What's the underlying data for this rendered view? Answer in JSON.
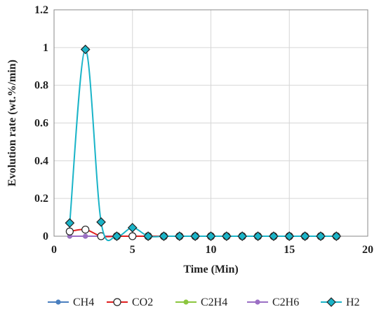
{
  "chart_data": {
    "type": "line",
    "title": "",
    "xlabel": "Time (Min)",
    "ylabel": "Evolution rate (wt.%/min)",
    "xlim": [
      0,
      20
    ],
    "ylim": [
      0,
      1.2
    ],
    "x_ticks": [
      0,
      5,
      10,
      15,
      20
    ],
    "y_ticks": [
      0,
      0.2,
      0.4,
      0.6,
      0.8,
      1,
      1.2
    ],
    "x_tick_labels": [
      "0",
      "5",
      "10",
      "15",
      "20"
    ],
    "y_tick_labels": [
      "0",
      "0.2",
      "0.4",
      "0.6",
      "0.8",
      "1",
      "1.2"
    ],
    "grid": true,
    "legend_position": "bottom",
    "x": [
      1,
      2,
      3,
      4,
      5,
      6,
      7,
      8,
      9,
      10,
      11,
      12,
      13,
      14,
      15,
      16,
      17,
      18
    ],
    "series": [
      {
        "name": "CH4",
        "color": "#4a7fbf",
        "marker": "circle",
        "marker_fill": "#4a7fbf",
        "values": [
          0,
          0,
          0,
          0,
          0,
          0,
          0,
          0,
          0,
          0,
          0,
          0,
          0,
          0,
          0,
          0,
          0,
          0
        ]
      },
      {
        "name": "CO2",
        "color": "#e02020",
        "marker": "circle-open",
        "marker_fill": "#ffffff",
        "values": [
          0.025,
          0.035,
          0,
          0,
          0,
          0,
          0,
          0,
          0,
          0,
          0,
          0,
          0,
          0,
          0,
          0,
          0,
          0
        ]
      },
      {
        "name": "C2H4",
        "color": "#8cc63f",
        "marker": "circle",
        "marker_fill": "#8cc63f",
        "values": [
          0,
          0,
          0,
          0,
          0,
          0,
          0,
          0,
          0,
          0,
          0,
          0,
          0,
          0,
          0,
          0,
          0,
          0
        ]
      },
      {
        "name": "C2H6",
        "color": "#9b6fc4",
        "marker": "circle",
        "marker_fill": "#9b6fc4",
        "values": [
          0,
          0,
          0,
          0,
          0,
          0,
          0,
          0,
          0,
          0,
          0,
          0,
          0,
          0,
          0,
          0,
          0,
          0
        ]
      },
      {
        "name": "H2",
        "color": "#1ab4c8",
        "marker": "diamond",
        "marker_fill": "#1ab4c8",
        "values": [
          0.07,
          0.99,
          0.075,
          0,
          0.045,
          0,
          0,
          0,
          0,
          0,
          0,
          0,
          0,
          0,
          0,
          0,
          0,
          0
        ]
      }
    ]
  }
}
